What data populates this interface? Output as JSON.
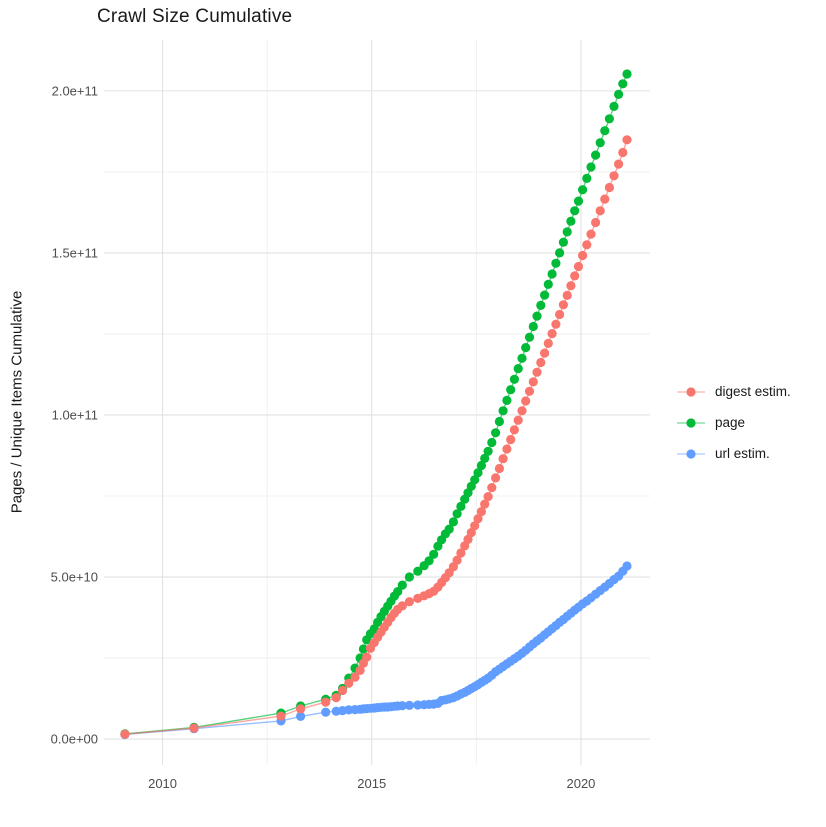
{
  "chart_data": {
    "type": "scatter",
    "title": "Crawl Size Cumulative",
    "xlabel": "",
    "ylabel": "Pages / Unique Items Cumulative",
    "legend_position": "right",
    "grid": true,
    "background": "#ffffff",
    "major_grid_color": "#e2e2e2",
    "minor_grid_color": "#ededed",
    "xlim": [
      2008.6,
      2021.65
    ],
    "ylim_e9": [
      -8,
      215.7
    ],
    "x_ticks": [
      2010,
      2015,
      2020
    ],
    "x_tick_labels": [
      "2010",
      "2015",
      "2020"
    ],
    "x_minor_ticks": [
      2012.5,
      2017.5
    ],
    "y_ticks_e9": [
      0,
      50,
      100,
      150,
      200
    ],
    "y_tick_labels": [
      "0.0e+00",
      "5.0e+10",
      "1.0e+11",
      "1.5e+11",
      "2.0e+11"
    ],
    "y_minor_ticks_e9": [
      25,
      75,
      125,
      175
    ],
    "unit_note": "values are cumulative counts in billions (1e9)",
    "x": [
      2009.1,
      2010.75,
      2012.83,
      2013.3,
      2013.9,
      2014.15,
      2014.3,
      2014.45,
      2014.6,
      2014.72,
      2014.8,
      2014.88,
      2014.97,
      2015.06,
      2015.14,
      2015.22,
      2015.3,
      2015.38,
      2015.46,
      2015.54,
      2015.62,
      2015.73,
      2015.9,
      2016.1,
      2016.25,
      2016.37,
      2016.48,
      2016.58,
      2016.67,
      2016.76,
      2016.85,
      2016.95,
      2017.04,
      2017.13,
      2017.22,
      2017.3,
      2017.38,
      2017.46,
      2017.54,
      2017.62,
      2017.7,
      2017.78,
      2017.87,
      2017.96,
      2018.05,
      2018.14,
      2018.23,
      2018.32,
      2018.41,
      2018.5,
      2018.59,
      2018.68,
      2018.77,
      2018.86,
      2018.95,
      2019.04,
      2019.13,
      2019.22,
      2019.31,
      2019.4,
      2019.49,
      2019.58,
      2019.67,
      2019.76,
      2019.85,
      2019.94,
      2020.04,
      2020.14,
      2020.24,
      2020.35,
      2020.46,
      2020.57,
      2020.68,
      2020.79,
      2020.9,
      2021.0,
      2021.1
    ],
    "series": [
      {
        "name": "digest estim.",
        "color": "#F8766D",
        "values_e9": [
          1.5,
          3.4,
          7.1,
          9.3,
          11.4,
          12.8,
          15.0,
          17.2,
          19.1,
          21.2,
          23.4,
          25.3,
          28.0,
          29.8,
          31.4,
          33.0,
          34.5,
          36.0,
          37.5,
          38.8,
          40.0,
          41.1,
          42.4,
          43.4,
          44.2,
          44.9,
          45.6,
          46.9,
          48.3,
          49.8,
          51.3,
          53.2,
          55.2,
          57.4,
          59.6,
          61.6,
          63.7,
          65.8,
          68.0,
          70.2,
          72.5,
          74.8,
          77.6,
          80.6,
          83.5,
          86.5,
          89.5,
          92.4,
          95.4,
          98.4,
          101.3,
          104.3,
          107.3,
          110.2,
          113.2,
          116.2,
          119.1,
          122.1,
          125.1,
          128.0,
          131.0,
          134.0,
          136.9,
          139.9,
          142.9,
          145.8,
          149.2,
          152.5,
          155.8,
          159.4,
          163.0,
          166.6,
          170.2,
          173.8,
          177.4,
          181.0,
          184.9
        ]
      },
      {
        "name": "page",
        "color": "#00BA38",
        "values_e9": [
          1.6,
          3.6,
          8.0,
          10.2,
          12.3,
          13.5,
          15.6,
          18.8,
          21.9,
          25.0,
          27.8,
          30.6,
          32.5,
          34.0,
          36.0,
          37.8,
          39.4,
          41.0,
          42.5,
          44.1,
          45.5,
          47.5,
          50.0,
          51.8,
          53.5,
          55.0,
          57.0,
          59.5,
          61.5,
          63.3,
          64.8,
          67.0,
          69.5,
          71.8,
          74.0,
          76.0,
          78.0,
          80.0,
          82.2,
          84.4,
          86.6,
          88.8,
          91.5,
          94.5,
          98.0,
          101.3,
          104.5,
          107.8,
          111.0,
          114.3,
          117.5,
          120.8,
          124.0,
          127.3,
          130.5,
          133.8,
          137.0,
          140.3,
          143.5,
          146.8,
          150.0,
          153.3,
          156.5,
          159.8,
          163.0,
          166.0,
          169.5,
          173.0,
          176.5,
          180.2,
          184.0,
          187.7,
          191.4,
          195.2,
          198.9,
          202.2,
          205.2
        ]
      },
      {
        "name": "url estim.",
        "color": "#619CFF",
        "values_e9": [
          1.4,
          3.2,
          5.6,
          7.0,
          8.3,
          8.6,
          8.8,
          9.0,
          9.1,
          9.2,
          9.3,
          9.4,
          9.5,
          9.6,
          9.7,
          9.8,
          9.9,
          9.9,
          10.0,
          10.1,
          10.2,
          10.3,
          10.4,
          10.5,
          10.6,
          10.7,
          10.8,
          11.0,
          11.9,
          12.1,
          12.4,
          12.8,
          13.3,
          13.9,
          14.4,
          15.0,
          15.6,
          16.2,
          16.8,
          17.5,
          18.1,
          18.8,
          19.7,
          20.8,
          21.6,
          22.4,
          23.2,
          24.0,
          24.8,
          25.6,
          26.5,
          27.4,
          28.4,
          29.4,
          30.3,
          31.2,
          32.2,
          33.1,
          34.1,
          35.0,
          36.0,
          36.9,
          37.9,
          38.8,
          39.8,
          40.7,
          41.7,
          42.6,
          43.6,
          44.7,
          45.8,
          46.9,
          48.0,
          49.2,
          50.3,
          51.8,
          53.4
        ]
      }
    ]
  },
  "legend": {
    "items": [
      {
        "label": "digest estim.",
        "color": "#F8766D"
      },
      {
        "label": "page",
        "color": "#00BA38"
      },
      {
        "label": "url estim.",
        "color": "#619CFF"
      }
    ]
  }
}
